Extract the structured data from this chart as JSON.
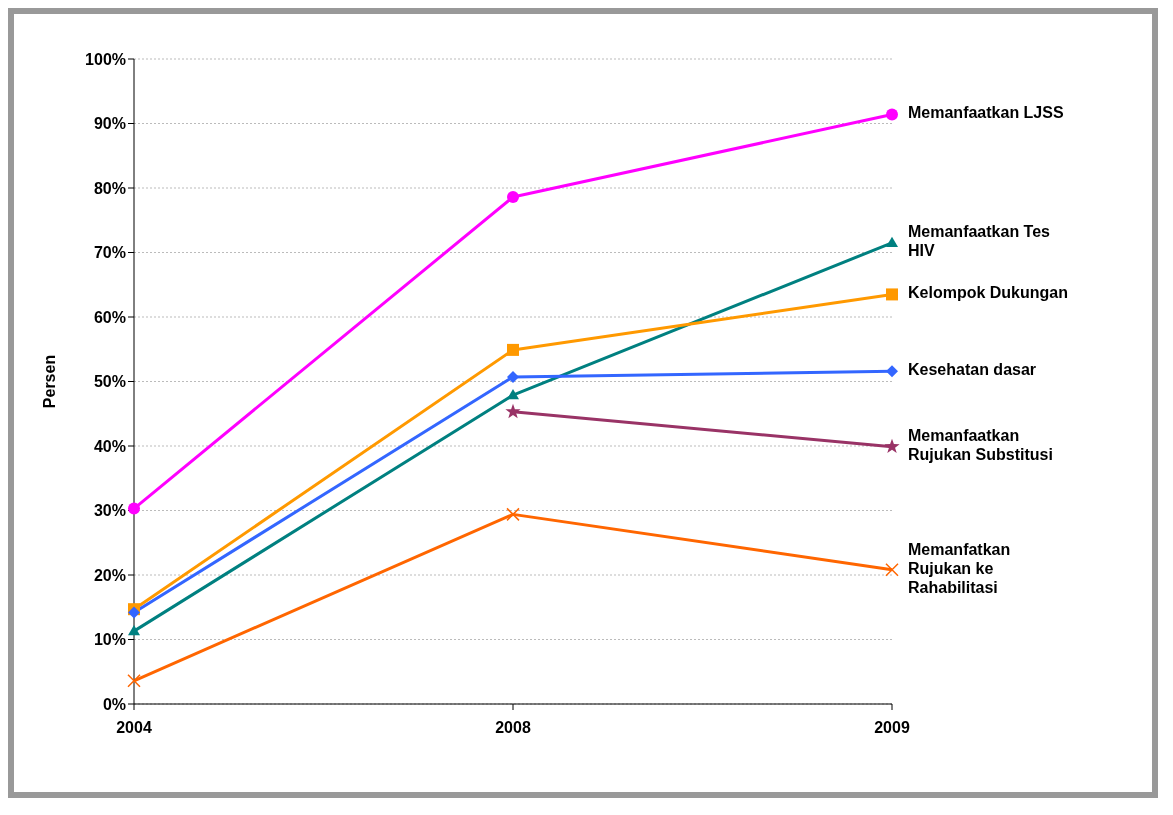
{
  "chart_data": {
    "type": "line",
    "ylabel": "Persen",
    "categories": [
      "2004",
      "2008",
      "2009"
    ],
    "series": [
      {
        "name": "Memanfaatkan LJSS",
        "color": "#ff00ff",
        "marker": "circle",
        "values": [
          30.3,
          78.6,
          91.4
        ]
      },
      {
        "name": "Memanfaatkan Tes HIV",
        "color": "#008080",
        "marker": "triangle",
        "values": [
          11.3,
          47.9,
          71.5
        ]
      },
      {
        "name": "Kelompok Dukungan",
        "color": "#ff9900",
        "marker": "square",
        "values": [
          14.7,
          54.9,
          63.5
        ]
      },
      {
        "name": "Kesehatan dasar",
        "color": "#3366ff",
        "marker": "diamond",
        "values": [
          14.2,
          50.7,
          51.6
        ]
      },
      {
        "name": "Memanfaatkan Rujukan Substitusi",
        "color": "#993366",
        "marker": "star",
        "values": [
          null,
          45.3,
          39.9
        ]
      },
      {
        "name": "Memanfatkan Rujukan ke Rahabilitasi",
        "color": "#ff6600",
        "marker": "cross",
        "values": [
          3.6,
          29.4,
          20.8
        ]
      }
    ],
    "ylim": [
      0,
      100
    ],
    "yticks": [
      {
        "value": 0,
        "label": "0%"
      },
      {
        "value": 10,
        "label": "10%"
      },
      {
        "value": 20,
        "label": "20%"
      },
      {
        "value": 30,
        "label": "30%"
      },
      {
        "value": 40,
        "label": "40%"
      },
      {
        "value": 50,
        "label": "50%"
      },
      {
        "value": 60,
        "label": "60%"
      },
      {
        "value": 70,
        "label": "70%"
      },
      {
        "value": 80,
        "label": "80%"
      },
      {
        "value": 90,
        "label": "90%"
      },
      {
        "value": 100,
        "label": "100%"
      }
    ],
    "grid": "y",
    "legend": false,
    "line_style": "solid"
  }
}
